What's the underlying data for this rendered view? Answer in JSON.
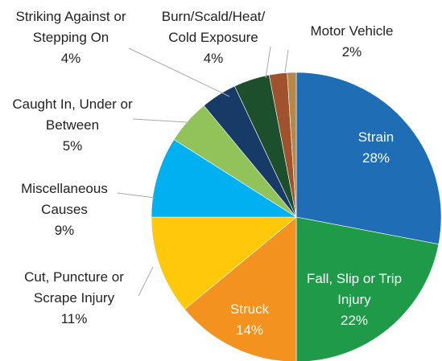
{
  "chart_data": {
    "type": "pie",
    "categories": [
      "Strain",
      "Fall, Slip or Trip Injury",
      "Struck",
      "Cut, Puncture or Scrape Injury",
      "Miscellaneous Causes",
      "Caught In, Under or Between",
      "Striking Against or Stepping On",
      "Burn/Scald/Heat/ Cold Exposure",
      "Motor Vehicle",
      null
    ],
    "values": [
      28,
      22,
      14,
      11,
      9,
      5,
      4,
      4,
      2,
      1
    ],
    "value_labels": [
      "28%",
      "22%",
      "14%",
      "11%",
      "9%",
      "5%",
      "4%",
      "4%",
      "2%",
      null
    ],
    "colors": [
      "#1f6eb5",
      "#1f9a48",
      "#f4921f",
      "#ffc80a",
      "#00b0f0",
      "#92c35a",
      "#173a66",
      "#1e4f2d",
      "#a0522d",
      "#b5894a"
    ]
  }
}
